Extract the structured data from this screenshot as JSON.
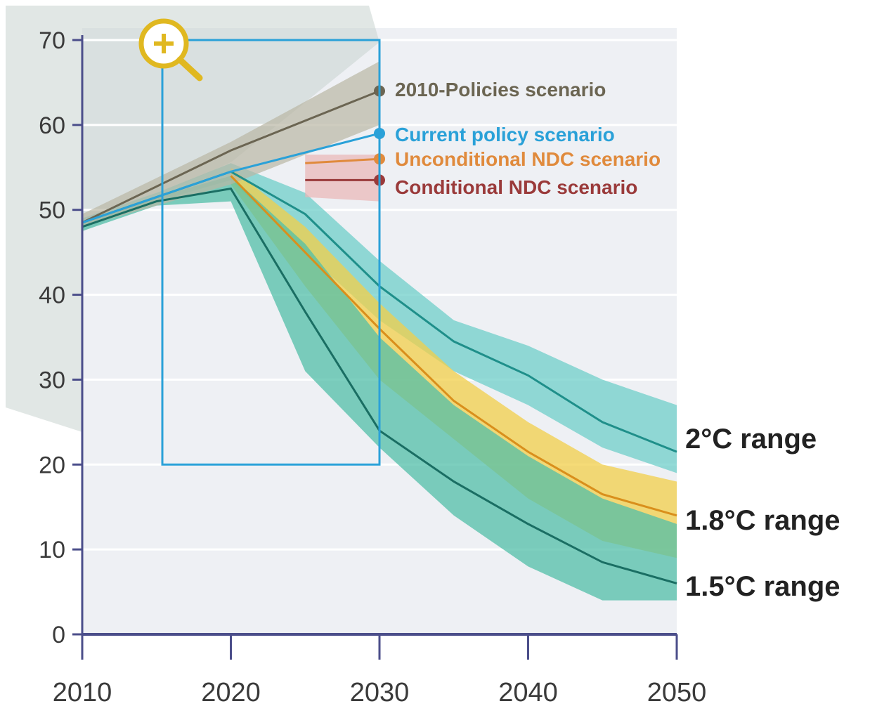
{
  "colors": {
    "plot_bg": "#eef0f4",
    "axis": "#4b4e8a",
    "policies_2010": "#6b6552",
    "policies_2010_band": "#b9b6a4",
    "current_policy": "#2aa1d8",
    "unconditional_ndc": "#e08a3c",
    "conditional_ndc": "#9a3a3a",
    "conditional_band": "#e9b5b5",
    "range_2c": "#1f8f8a",
    "range_2c_band": "#6fcfca",
    "range_18c": "#d98f1c",
    "range_18c_band": "#f2cf4a",
    "range_15c": "#1a6e63",
    "range_15c_band": "#52bfa8",
    "zoom_box": "#2aa1d8",
    "zoom_icon": "#e0b820"
  },
  "zoom": {
    "icon": "zoom-in-magnifier-icon"
  },
  "chart_data": {
    "type": "line",
    "title": "",
    "xlabel": "",
    "ylabel": "",
    "xlim": [
      2010,
      2050
    ],
    "ylim": [
      0,
      70
    ],
    "x_ticks": [
      "2010",
      "2020",
      "2030",
      "2040",
      "2050"
    ],
    "y_ticks": [
      "0",
      "10",
      "20",
      "30",
      "40",
      "50",
      "60",
      "70"
    ],
    "zoom_region": {
      "x": [
        2015,
        2030
      ],
      "y": [
        20,
        70
      ]
    },
    "scenarios": [
      {
        "name": "2010-Policies scenario",
        "color_key": "policies_2010",
        "x": [
          2010,
          2020,
          2030
        ],
        "y": [
          48.5,
          57,
          64
        ],
        "band_low": [
          48,
          53,
          60
        ],
        "band_high": [
          49.5,
          58,
          67.5
        ]
      },
      {
        "name": "Current policy scenario",
        "color_key": "current_policy",
        "x": [
          2010,
          2015,
          2020,
          2030
        ],
        "y": [
          48.5,
          51.5,
          54.5,
          59
        ],
        "band_low": [],
        "band_high": []
      },
      {
        "name": "Unconditional NDC scenario",
        "color_key": "unconditional_ndc",
        "x": [
          2025,
          2030
        ],
        "y": [
          55.5,
          56
        ]
      },
      {
        "name": "Conditional NDC scenario",
        "color_key": "conditional_ndc",
        "x": [
          2025,
          2030
        ],
        "y": [
          53.5,
          53.5
        ],
        "band_low": [
          51.5,
          51
        ],
        "band_high": [
          56.5,
          56.5
        ]
      }
    ],
    "ranges": [
      {
        "name": "2°C range",
        "color_key": "range_2c",
        "x": [
          2010,
          2015,
          2020,
          2025,
          2030,
          2035,
          2040,
          2045,
          2050
        ],
        "y": [
          48.5,
          51.5,
          54.5,
          49.5,
          41,
          34.5,
          30.5,
          25,
          21.5
        ],
        "band_low": [
          48,
          51,
          53.5,
          45,
          37,
          31,
          27,
          22,
          19
        ],
        "band_high": [
          49,
          52,
          55.5,
          52,
          44,
          37,
          34,
          30,
          27
        ]
      },
      {
        "name": "1.8°C range",
        "color_key": "range_18c",
        "x": [
          2020,
          2025,
          2030,
          2035,
          2040,
          2045,
          2050
        ],
        "y": [
          54,
          45,
          36,
          27.5,
          21.5,
          16.5,
          14
        ],
        "band_low": [
          53,
          41,
          30,
          23,
          16,
          11,
          9
        ],
        "band_high": [
          55,
          48,
          39,
          31,
          25,
          20,
          18
        ]
      },
      {
        "name": "1.5°C range",
        "color_key": "range_15c",
        "x": [
          2010,
          2015,
          2020,
          2025,
          2030,
          2035,
          2040,
          2045,
          2050
        ],
        "y": [
          48,
          51,
          52.5,
          38,
          24,
          18,
          13,
          8.5,
          6
        ],
        "band_low": [
          47.5,
          50.5,
          51,
          31,
          22,
          14,
          8,
          4,
          4
        ],
        "band_high": [
          48.5,
          51.5,
          54,
          46,
          35,
          27,
          21,
          16,
          13
        ]
      }
    ]
  }
}
